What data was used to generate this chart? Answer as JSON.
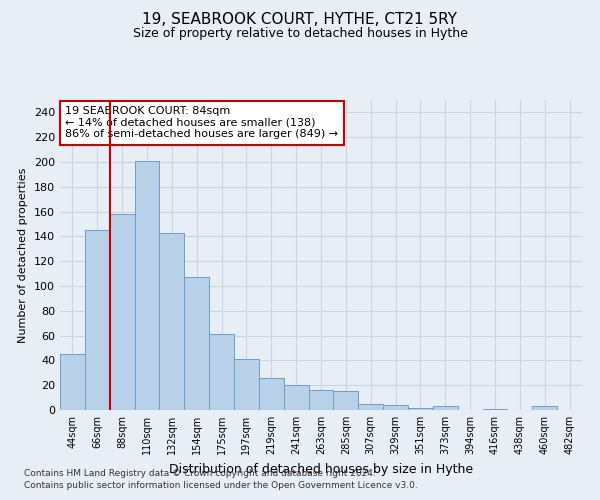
{
  "title1": "19, SEABROOK COURT, HYTHE, CT21 5RY",
  "title2": "Size of property relative to detached houses in Hythe",
  "xlabel": "Distribution of detached houses by size in Hythe",
  "ylabel": "Number of detached properties",
  "categories": [
    "44sqm",
    "66sqm",
    "88sqm",
    "110sqm",
    "132sqm",
    "154sqm",
    "175sqm",
    "197sqm",
    "219sqm",
    "241sqm",
    "263sqm",
    "285sqm",
    "307sqm",
    "329sqm",
    "351sqm",
    "373sqm",
    "394sqm",
    "416sqm",
    "438sqm",
    "460sqm",
    "482sqm"
  ],
  "values": [
    45,
    145,
    158,
    201,
    143,
    107,
    61,
    41,
    26,
    20,
    16,
    15,
    5,
    4,
    2,
    3,
    0,
    1,
    0,
    3,
    0
  ],
  "bar_color": "#b8d0e8",
  "bar_edge_color": "#6aa0cc",
  "highlight_line_index": 2,
  "highlight_line_color": "#cc0000",
  "annotation_text": "19 SEABROOK COURT: 84sqm\n← 14% of detached houses are smaller (138)\n86% of semi-detached houses are larger (849) →",
  "annotation_box_color": "#ffffff",
  "annotation_box_edge_color": "#cc0000",
  "ylim": [
    0,
    250
  ],
  "yticks": [
    0,
    20,
    40,
    60,
    80,
    100,
    120,
    140,
    160,
    180,
    200,
    220,
    240
  ],
  "grid_color": "#c8d4e4",
  "footnote1": "Contains HM Land Registry data © Crown copyright and database right 2024.",
  "footnote2": "Contains public sector information licensed under the Open Government Licence v3.0.",
  "bg_color": "#e8eef6",
  "title1_fontsize": 11,
  "title2_fontsize": 9,
  "xlabel_fontsize": 9,
  "ylabel_fontsize": 8,
  "tick_fontsize": 8,
  "xtick_fontsize": 7,
  "annotation_fontsize": 8,
  "footnote_fontsize": 6.5
}
